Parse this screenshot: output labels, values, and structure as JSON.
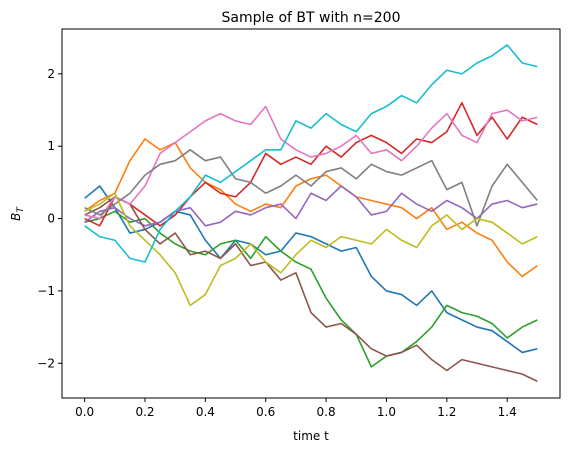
{
  "chart_data": {
    "type": "line",
    "title": "Sample of BT with n=200",
    "xlabel": "time t",
    "ylabel_main": "B",
    "ylabel_sub": "T",
    "xlim": [
      -0.075,
      1.575
    ],
    "ylim": [
      -2.48,
      2.62
    ],
    "grid": false,
    "x_ticks": [
      0.0,
      0.2,
      0.4,
      0.6,
      0.8,
      1.0,
      1.2,
      1.4
    ],
    "x_tick_labels": [
      "0.0",
      "0.2",
      "0.4",
      "0.6",
      "0.8",
      "1.0",
      "1.2",
      "1.4"
    ],
    "y_ticks": [
      -2,
      -1,
      0,
      1,
      2
    ],
    "y_tick_labels": [
      "−2",
      "−1",
      "0",
      "1",
      "2"
    ],
    "x": [
      0.0,
      0.05,
      0.1,
      0.15,
      0.2,
      0.25,
      0.3,
      0.35,
      0.4,
      0.45,
      0.5,
      0.55,
      0.6,
      0.65,
      0.7,
      0.75,
      0.8,
      0.85,
      0.9,
      0.95,
      1.0,
      1.05,
      1.1,
      1.15,
      1.2,
      1.25,
      1.3,
      1.35,
      1.4,
      1.45,
      1.5
    ],
    "series": [
      {
        "color": "#1f77b4",
        "values": [
          0.28,
          0.45,
          0.15,
          -0.2,
          -0.15,
          -0.05,
          0.1,
          0.05,
          -0.3,
          -0.55,
          -0.3,
          -0.35,
          -0.5,
          -0.45,
          -0.2,
          -0.25,
          -0.35,
          -0.45,
          -0.4,
          -0.8,
          -1.0,
          -1.05,
          -1.2,
          -1.0,
          -1.3,
          -1.4,
          -1.5,
          -1.55,
          -1.7,
          -1.85,
          -1.8
        ]
      },
      {
        "color": "#ff7f0e",
        "values": [
          0.1,
          0.25,
          0.35,
          0.8,
          1.1,
          0.95,
          1.05,
          0.7,
          0.5,
          0.4,
          0.2,
          0.1,
          0.2,
          0.15,
          0.45,
          0.55,
          0.6,
          0.45,
          0.3,
          0.25,
          0.2,
          0.15,
          0.0,
          0.15,
          -0.15,
          -0.05,
          -0.2,
          -0.3,
          -0.6,
          -0.8,
          -0.65
        ]
      },
      {
        "color": "#2ca02c",
        "values": [
          -0.05,
          0.0,
          0.1,
          -0.05,
          0.0,
          -0.2,
          -0.35,
          -0.45,
          -0.5,
          -0.35,
          -0.3,
          -0.55,
          -0.25,
          -0.45,
          -0.6,
          -0.7,
          -1.1,
          -1.4,
          -1.6,
          -2.05,
          -1.9,
          -1.85,
          -1.7,
          -1.5,
          -1.2,
          -1.3,
          -1.35,
          -1.45,
          -1.65,
          -1.5,
          -1.4
        ]
      },
      {
        "color": "#d62728",
        "values": [
          0.0,
          -0.1,
          0.3,
          0.2,
          0.05,
          -0.1,
          0.05,
          0.3,
          0.5,
          0.35,
          0.3,
          0.5,
          0.9,
          0.75,
          0.85,
          0.75,
          1.0,
          0.85,
          1.05,
          1.15,
          1.05,
          0.9,
          1.1,
          1.05,
          1.2,
          1.6,
          1.15,
          1.4,
          1.1,
          1.4,
          1.3
        ]
      },
      {
        "color": "#9467bd",
        "values": [
          -0.05,
          0.1,
          0.15,
          0.0,
          -0.1,
          -0.05,
          0.1,
          0.15,
          -0.1,
          -0.05,
          0.1,
          0.05,
          0.15,
          0.2,
          0.0,
          0.35,
          0.25,
          0.45,
          0.3,
          0.05,
          0.1,
          0.35,
          0.2,
          0.1,
          0.25,
          0.15,
          0.0,
          0.2,
          0.25,
          0.15,
          0.2
        ]
      },
      {
        "color": "#8c564b",
        "values": [
          0.05,
          0.15,
          0.3,
          0.2,
          -0.15,
          -0.35,
          -0.2,
          -0.5,
          -0.45,
          -0.55,
          -0.35,
          -0.65,
          -0.6,
          -0.85,
          -0.75,
          -1.3,
          -1.5,
          -1.45,
          -1.6,
          -1.8,
          -1.9,
          -1.85,
          -1.75,
          -1.95,
          -2.1,
          -1.95,
          -2.0,
          -2.05,
          -2.1,
          -2.15,
          -2.25
        ]
      },
      {
        "color": "#e377c2",
        "values": [
          0.05,
          0.0,
          0.3,
          0.2,
          0.45,
          0.9,
          1.05,
          1.2,
          1.35,
          1.45,
          1.35,
          1.3,
          1.55,
          1.1,
          0.95,
          0.85,
          0.9,
          1.0,
          1.15,
          0.9,
          0.95,
          0.8,
          1.0,
          1.25,
          1.45,
          1.15,
          1.05,
          1.45,
          1.5,
          1.35,
          1.4
        ]
      },
      {
        "color": "#7f7f7f",
        "values": [
          0.15,
          0.05,
          0.2,
          0.35,
          0.6,
          0.75,
          0.8,
          0.95,
          0.8,
          0.85,
          0.55,
          0.5,
          0.35,
          0.45,
          0.6,
          0.45,
          0.65,
          0.7,
          0.55,
          0.75,
          0.65,
          0.6,
          0.7,
          0.8,
          0.4,
          0.5,
          -0.1,
          0.45,
          0.75,
          0.5,
          0.25
        ]
      },
      {
        "color": "#bcbd22",
        "values": [
          0.1,
          0.2,
          0.35,
          -0.1,
          -0.3,
          -0.5,
          -0.75,
          -1.2,
          -1.05,
          -0.65,
          -0.55,
          -0.35,
          -0.6,
          -0.75,
          -0.5,
          -0.3,
          -0.4,
          -0.25,
          -0.3,
          -0.35,
          -0.15,
          -0.3,
          -0.4,
          -0.1,
          0.05,
          -0.15,
          0.0,
          -0.05,
          -0.2,
          -0.35,
          -0.25
        ]
      },
      {
        "color": "#17becf",
        "values": [
          -0.1,
          -0.25,
          -0.3,
          -0.55,
          -0.6,
          -0.15,
          0.1,
          0.3,
          0.6,
          0.5,
          0.65,
          0.8,
          0.95,
          0.95,
          1.35,
          1.25,
          1.45,
          1.3,
          1.2,
          1.45,
          1.55,
          1.7,
          1.6,
          1.85,
          2.05,
          2.0,
          2.15,
          2.25,
          2.4,
          2.15,
          2.1
        ]
      }
    ]
  }
}
